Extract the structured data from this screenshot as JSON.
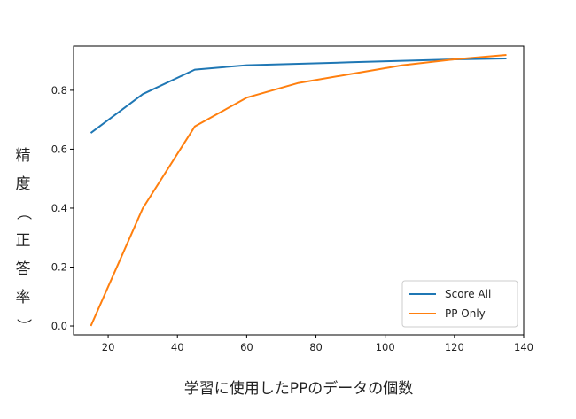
{
  "chart_data": {
    "type": "line",
    "xlabel": "学習に使用したPPのデータの個数",
    "ylabel": "精度（正答率）",
    "xlim": [
      10,
      140
    ],
    "ylim": [
      -0.03,
      0.95
    ],
    "xticks": [
      20,
      40,
      60,
      80,
      100,
      120,
      140
    ],
    "yticks": [
      0.0,
      0.2,
      0.4,
      0.6,
      0.8
    ],
    "legend_position": "lower-right",
    "series": [
      {
        "name": "Score All",
        "color": "#1f77b4",
        "x": [
          15,
          30,
          45,
          60,
          75,
          90,
          105,
          120,
          135
        ],
        "y": [
          0.655,
          0.787,
          0.87,
          0.885,
          0.89,
          0.895,
          0.9,
          0.905,
          0.908
        ]
      },
      {
        "name": "PP Only",
        "color": "#ff7f0e",
        "x": [
          15,
          30,
          45,
          60,
          75,
          90,
          105,
          120,
          135
        ],
        "y": [
          0.0,
          0.4,
          0.677,
          0.775,
          0.825,
          0.855,
          0.885,
          0.905,
          0.92
        ]
      }
    ]
  }
}
